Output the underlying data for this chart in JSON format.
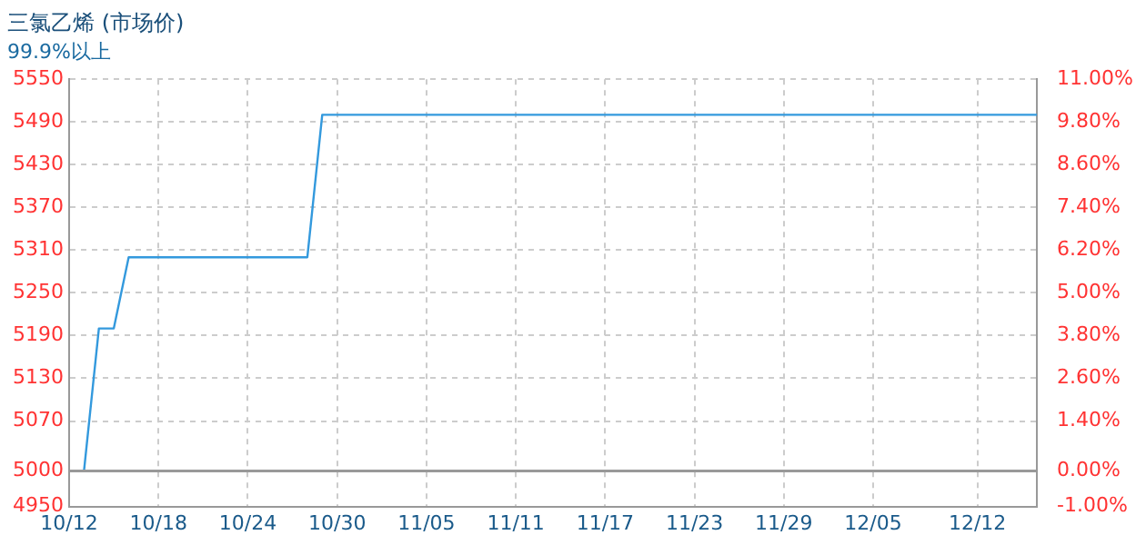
{
  "chart_data": {
    "type": "line",
    "title": "三氯乙烯 (市场价)",
    "subtitle": "99.9%以上",
    "x": [
      "--10-12",
      "--10-13",
      "--10-14",
      "--10-15",
      "--10-16",
      "--10-28",
      "--10-29",
      "--12-16"
    ],
    "series": [
      {
        "color": "#3399dd",
        "values": [
          5000,
          5000,
          5200,
          5200,
          5300,
          5300,
          5500,
          5500
        ]
      }
    ],
    "xlim": [
      "--10-12",
      "--12-16"
    ],
    "xticks": [
      {
        "value": "--10-12",
        "label": "10/12"
      },
      {
        "value": "--10-18",
        "label": "10/18"
      },
      {
        "value": "--10-24",
        "label": "10/24"
      },
      {
        "value": "--10-30",
        "label": "10/30"
      },
      {
        "value": "--11-05",
        "label": "11/05"
      },
      {
        "value": "--11-11",
        "label": "11/11"
      },
      {
        "value": "--11-17",
        "label": "11/17"
      },
      {
        "value": "--11-23",
        "label": "11/23"
      },
      {
        "value": "--11-29",
        "label": "11/29"
      },
      {
        "value": "--12-05",
        "label": "12/05"
      },
      {
        "value": "--12-12",
        "label": "12/12"
      }
    ],
    "ylim": [
      4950,
      5550
    ],
    "yticks": [
      4950,
      5000,
      5070,
      5130,
      5190,
      5250,
      5310,
      5370,
      5430,
      5490,
      5550
    ],
    "y2lim": [
      -1,
      11
    ],
    "y2ticks": [
      {
        "value": -1,
        "label": "-1.00%"
      },
      {
        "value": 0,
        "label": "0.00%"
      },
      {
        "value": 1.4,
        "label": "1.40%"
      },
      {
        "value": 2.6,
        "label": "2.60%"
      },
      {
        "value": 3.8,
        "label": "3.80%"
      },
      {
        "value": 5,
        "label": "5.00%"
      },
      {
        "value": 6.2,
        "label": "6.20%"
      },
      {
        "value": 7.4,
        "label": "7.40%"
      },
      {
        "value": 8.6,
        "label": "8.60%"
      },
      {
        "value": 9.8,
        "label": "9.80%"
      },
      {
        "value": 11,
        "label": "11.00%"
      }
    ],
    "ref_lines": [
      {
        "axis": "y",
        "value": 5000,
        "color": "#999999"
      }
    ],
    "grid": true,
    "legend": false,
    "marker": "none",
    "line_style": "solid"
  }
}
